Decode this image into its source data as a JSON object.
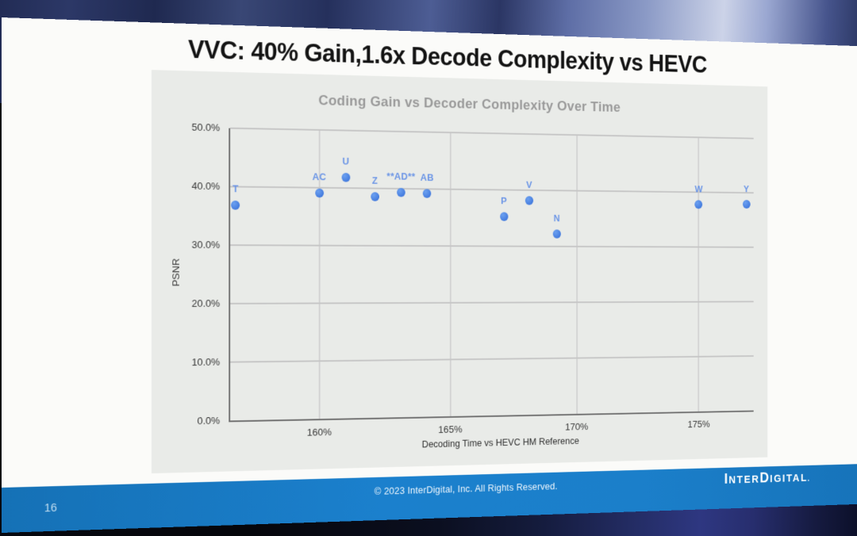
{
  "slide": {
    "title": "VVC: 40% Gain,1.6x Decode Complexity vs HEVC",
    "page_number": "16",
    "copyright": "© 2023 InterDigital, Inc. All Rights Reserved.",
    "logo": {
      "lead1": "I",
      "body1": "NTER",
      "lead2": "D",
      "body2": "IGITAL",
      "mark": "."
    }
  },
  "chart_data": {
    "type": "scatter",
    "title": "Coding Gain vs Decoder Complexity Over Time",
    "xlabel": "Decoding Time vs HEVC HM Reference",
    "ylabel": "PSNR",
    "xlim": [
      156.7,
      177.3
    ],
    "ylim": [
      0,
      50
    ],
    "grid": true,
    "legend_position": "none",
    "x_ticks": [
      {
        "v": 160,
        "label": "160%"
      },
      {
        "v": 165,
        "label": "165%"
      },
      {
        "v": 170,
        "label": "170%"
      },
      {
        "v": 175,
        "label": "175%"
      }
    ],
    "y_ticks": [
      {
        "v": 0,
        "label": "0.0%"
      },
      {
        "v": 10,
        "label": "10.0%"
      },
      {
        "v": 20,
        "label": "20.0%"
      },
      {
        "v": 30,
        "label": "30.0%"
      },
      {
        "v": 40,
        "label": "40.0%"
      },
      {
        "v": 50,
        "label": "50.0%"
      }
    ],
    "points": [
      {
        "label": "T",
        "x": 156.9,
        "y": 36.8
      },
      {
        "label": "AC",
        "x": 160.0,
        "y": 39.1
      },
      {
        "label": "U",
        "x": 161.0,
        "y": 41.8
      },
      {
        "label": "Z",
        "x": 162.1,
        "y": 38.5
      },
      {
        "label": "**AD**",
        "x": 163.1,
        "y": 39.3
      },
      {
        "label": "AB",
        "x": 164.1,
        "y": 39.2
      },
      {
        "label": "P",
        "x": 167.1,
        "y": 35.3
      },
      {
        "label": "V",
        "x": 168.1,
        "y": 38.1
      },
      {
        "label": "N",
        "x": 169.2,
        "y": 32.3
      },
      {
        "label": "W",
        "x": 175.0,
        "y": 37.7
      },
      {
        "label": "Y",
        "x": 177.0,
        "y": 37.9
      }
    ],
    "point_color": "#4a82e4"
  },
  "colors": {
    "footer_band": "#1a7bc6",
    "point_blue": "#4a82e4",
    "panel_gray": "#e9ebe8",
    "slide_background": "#fbfbf9",
    "chart_title_gray": "#9a9a9a",
    "title_text": "#141414"
  }
}
